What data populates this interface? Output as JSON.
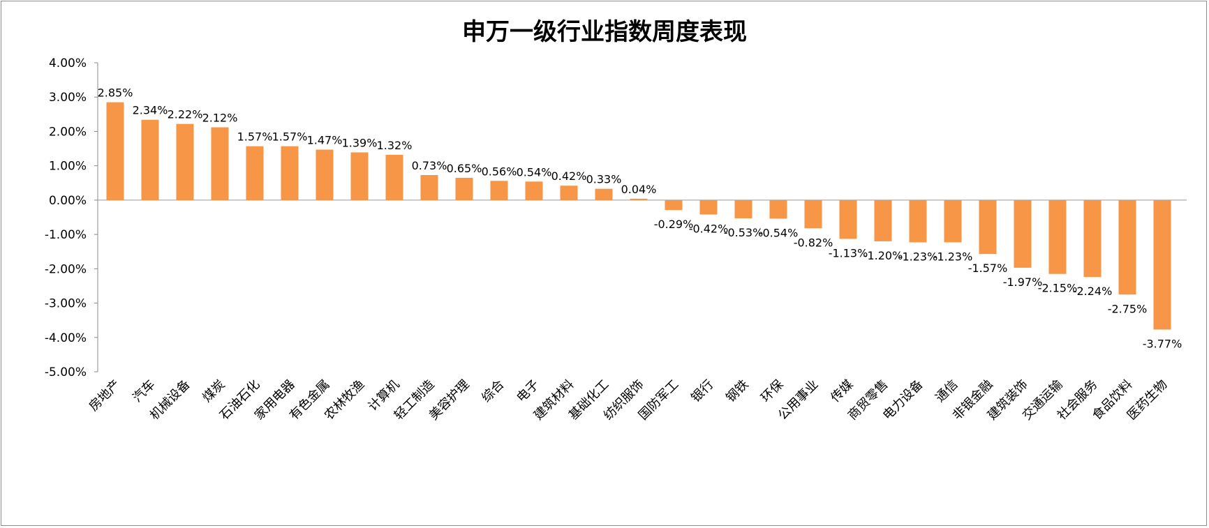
{
  "chart_data": {
    "type": "bar",
    "title": "申万一级行业指数周度表现",
    "xlabel": "",
    "ylabel": "",
    "ylim": [
      -5,
      4
    ],
    "yticks": [
      4,
      3,
      2,
      1,
      0,
      -1,
      -2,
      -3,
      -4,
      -5
    ],
    "ytick_labels": [
      "4.00%",
      "3.00%",
      "2.00%",
      "1.00%",
      "0.00%",
      "-1.00%",
      "-2.00%",
      "-3.00%",
      "-4.00%",
      "-5.00%"
    ],
    "grid": false,
    "legend": "none",
    "bar_color": "#F79646",
    "categories": [
      "房地产",
      "汽车",
      "机械设备",
      "煤炭",
      "石油石化",
      "家用电器",
      "有色金属",
      "农林牧渔",
      "计算机",
      "轻工制造",
      "美容护理",
      "综合",
      "电子",
      "建筑材料",
      "基础化工",
      "纺织服饰",
      "国防军工",
      "银行",
      "钢铁",
      "环保",
      "公用事业",
      "传媒",
      "商贸零售",
      "电力设备",
      "通信",
      "非银金融",
      "建筑装饰",
      "交通运输",
      "社会服务",
      "食品饮料",
      "医药生物"
    ],
    "values": [
      2.85,
      2.34,
      2.22,
      2.12,
      1.57,
      1.57,
      1.47,
      1.39,
      1.32,
      0.73,
      0.65,
      0.56,
      0.54,
      0.42,
      0.33,
      0.04,
      -0.29,
      -0.42,
      -0.53,
      -0.54,
      -0.82,
      -1.13,
      -1.2,
      -1.23,
      -1.23,
      -1.57,
      -1.97,
      -2.15,
      -2.24,
      -2.75,
      -3.77
    ],
    "value_labels": [
      "2.85%",
      "2.34%",
      "2.22%",
      "2.12%",
      "1.57%",
      "1.57%",
      "1.47%",
      "1.39%",
      "1.32%",
      "0.73%",
      "0.65%",
      "0.56%",
      "0.54%",
      "0.42%",
      "0.33%",
      "0.04%",
      "-0.29%",
      "-0.42%",
      "-0.53%",
      "-0.54%",
      "-0.82%",
      "-1.13%",
      "-1.20%",
      "-1.23%",
      "-1.23%",
      "-1.57%",
      "-1.97%",
      "-2.15%",
      "-2.24%",
      "-2.75%",
      "-3.77%"
    ]
  }
}
